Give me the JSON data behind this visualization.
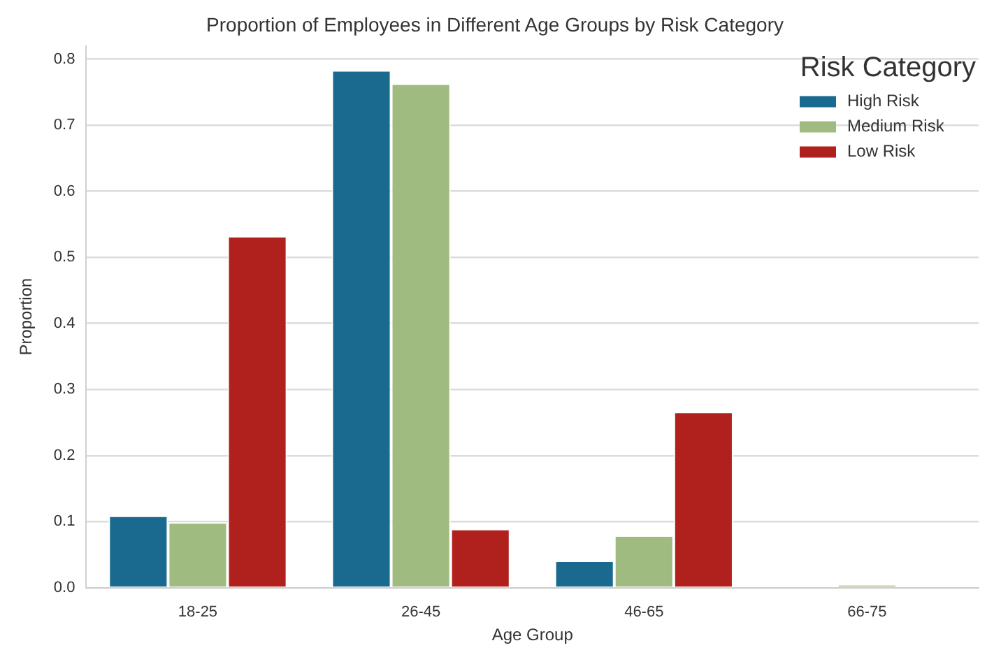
{
  "chart_data": {
    "type": "bar",
    "title": "Proportion of Employees in Different Age Groups by Risk Category",
    "xlabel": "Age Group",
    "ylabel": "Proportion",
    "legend_title": "Risk Category",
    "categories": [
      "18-25",
      "26-45",
      "46-65",
      "66-75"
    ],
    "series": [
      {
        "name": "High Risk",
        "color": "#1a6a8f",
        "values": [
          0.109,
          0.783,
          0.041,
          0
        ]
      },
      {
        "name": "Medium Risk",
        "color": "#9fbb7f",
        "values": [
          0.099,
          0.763,
          0.079,
          0.005
        ]
      },
      {
        "name": "Low Risk",
        "color": "#b0211d",
        "values": [
          0.532,
          0.089,
          0.266,
          0
        ]
      }
    ],
    "ylim": [
      0,
      0.82
    ],
    "yticks": [
      {
        "value": 0,
        "label": "0.0"
      },
      0.1,
      0.2,
      0.3,
      0.4,
      0.5,
      0.6,
      0.7,
      0.8
    ],
    "grid": "y",
    "legend": "top right"
  }
}
